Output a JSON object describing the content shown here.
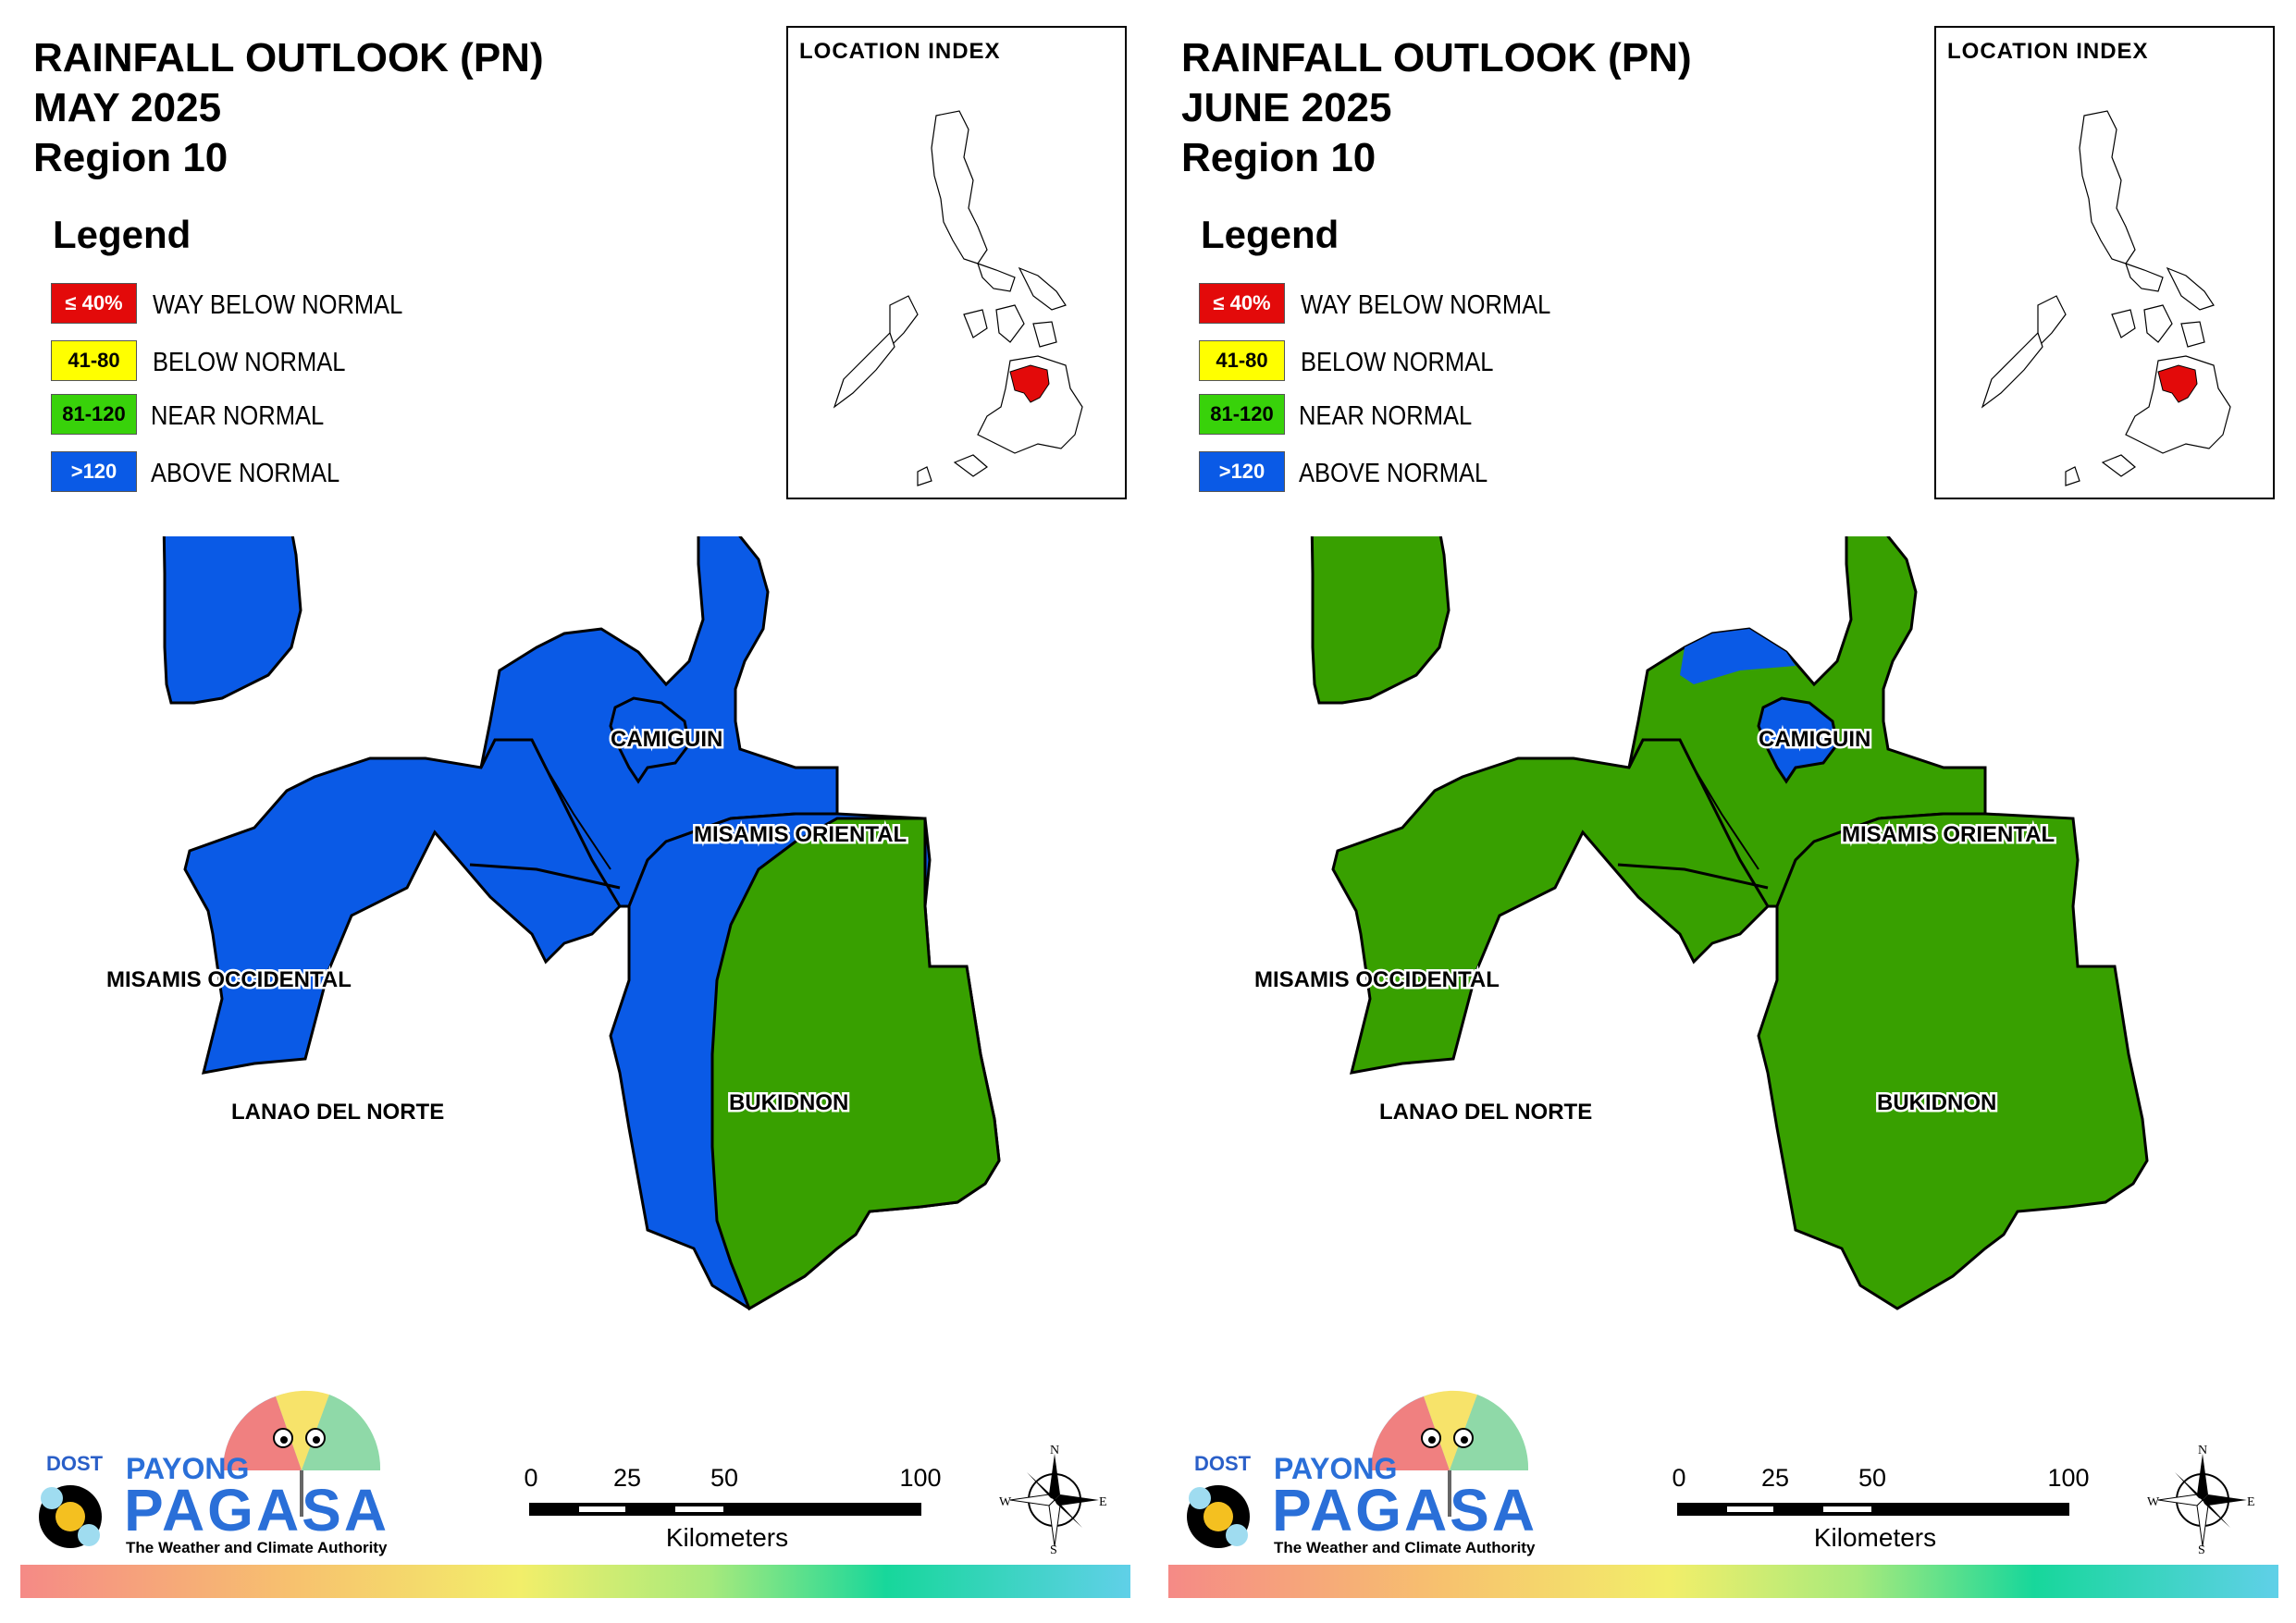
{
  "legend": {
    "heading": "Legend",
    "items": [
      {
        "swatch_text": "≤ 40%",
        "label": "WAY BELOW NORMAL",
        "color": "#e30a0a",
        "text_color": "#ffffff"
      },
      {
        "swatch_text": "41-80",
        "label": "BELOW NORMAL",
        "color": "#ffff00",
        "text_color": "#000000"
      },
      {
        "swatch_text": "81-120",
        "label": "NEAR NORMAL",
        "color": "#38d20a",
        "text_color": "#000000"
      },
      {
        "swatch_text": ">120",
        "label": "ABOVE NORMAL",
        "color": "#0a5ae6",
        "text_color": "#ffffff"
      }
    ]
  },
  "location_index": {
    "title": "LOCATION INDEX"
  },
  "province_labels": {
    "camiguin": "CAMIGUIN",
    "misamis_oriental": "MISAMIS ORIENTAL",
    "misamis_occidental": "MISAMIS OCCIDENTAL",
    "lanao_del_norte": "LANAO DEL NORTE",
    "bukidnon": "BUKIDNON"
  },
  "category_colors": {
    "near_normal": "#38a000",
    "above_normal": "#0a5ae6",
    "highlight": "#e30a0a"
  },
  "maps": [
    {
      "title_line1": "RAINFALL OUTLOOK (PN)",
      "title_line2": "MAY 2025",
      "title_line3": "Region 10",
      "provinces": {
        "camiguin": "ABOVE NORMAL",
        "misamis_oriental": "ABOVE NORMAL",
        "misamis_occidental": "ABOVE NORMAL",
        "lanao_del_norte": "ABOVE NORMAL",
        "bukidnon": "NEAR NORMAL (east), ABOVE NORMAL (west)"
      }
    },
    {
      "title_line1": "RAINFALL OUTLOOK (PN)",
      "title_line2": "JUNE 2025",
      "title_line3": "Region 10",
      "provinces": {
        "camiguin": "ABOVE NORMAL",
        "misamis_oriental": "NEAR NORMAL (mostly), ABOVE NORMAL (north tips)",
        "misamis_occidental": "NEAR NORMAL",
        "lanao_del_norte": "NEAR NORMAL",
        "bukidnon": "NEAR NORMAL"
      }
    }
  ],
  "logo": {
    "dost": "DOST",
    "payong": "PAYONG",
    "pagasa": "PAGASA",
    "tagline": "The Weather and Climate Authority"
  },
  "scale": {
    "ticks": [
      "0",
      "25",
      "50",
      "100"
    ],
    "unit": "Kilometers"
  },
  "compass": {
    "n": "N",
    "e": "E",
    "s": "S",
    "w": "W"
  }
}
